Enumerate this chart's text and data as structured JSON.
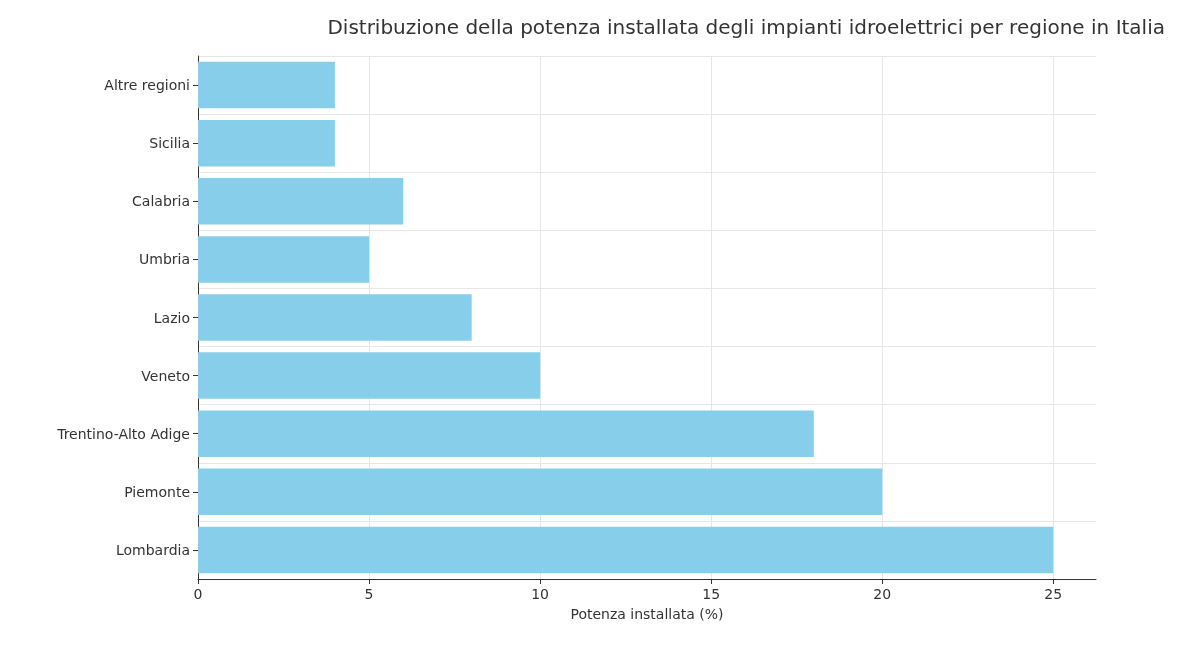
{
  "chart_data": {
    "type": "bar",
    "orientation": "horizontal",
    "title": "Distribuzione della potenza installata degli impianti idroelettrici per regione in Italia",
    "xlabel": "Potenza installata (%)",
    "categories": [
      "Altre regioni",
      "Sicilia",
      "Calabria",
      "Umbria",
      "Lazio",
      "Veneto",
      "Trentino-Alto Adige",
      "Piemonte",
      "Lombardia"
    ],
    "values": [
      4,
      4,
      6,
      5,
      8,
      10,
      18,
      20,
      25
    ],
    "color": "#87ceeb",
    "xlim": [
      0,
      26.25
    ],
    "xticks": [
      0,
      5,
      10,
      15,
      20,
      25
    ],
    "grid": true
  }
}
